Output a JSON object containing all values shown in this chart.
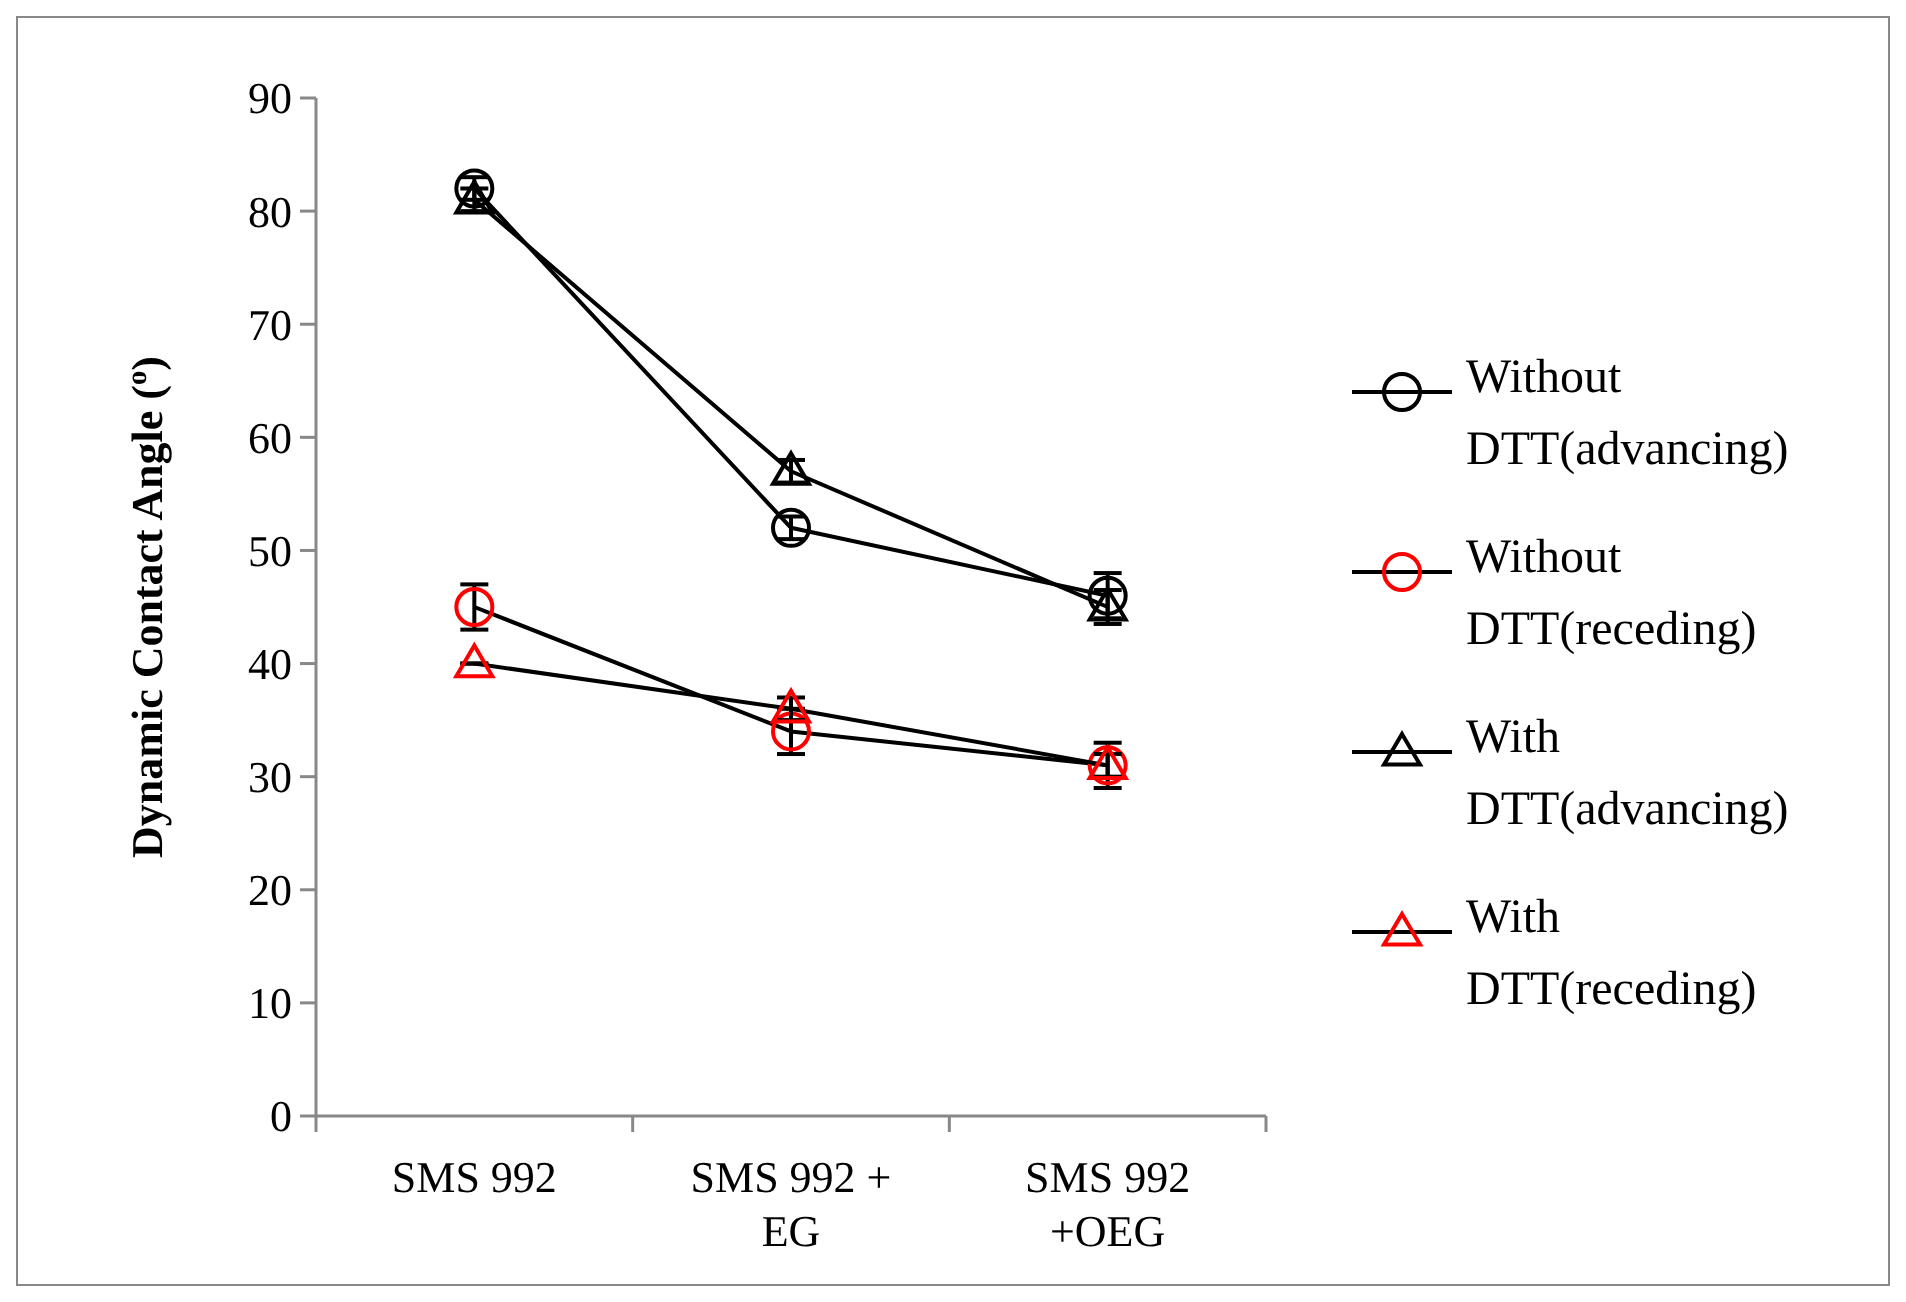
{
  "chart_data": {
    "type": "line",
    "ylabel": "Dynamic Contact Angle ($^{o}$)",
    "categories": [
      "SMS 992",
      "SMS 992 + EG",
      "SMS 992 +OEG"
    ],
    "ylim": [
      0,
      90
    ],
    "yticks": [
      0,
      10,
      20,
      30,
      40,
      50,
      60,
      70,
      80,
      90
    ],
    "grid": false,
    "legend": "right",
    "series": [
      {
        "name": "Without DTT(advancing)",
        "color": "#000000",
        "marker": "circle",
        "values": [
          82,
          52,
          46
        ],
        "errors": [
          1,
          1,
          2
        ]
      },
      {
        "name": "Without DTT(receding)",
        "color": "#ff0000",
        "marker": "circle",
        "values": [
          45,
          34,
          31
        ],
        "errors": [
          2,
          2,
          2
        ]
      },
      {
        "name": "With DTT(advancing)",
        "color": "#000000",
        "marker": "triangle",
        "values": [
          81,
          57,
          45
        ],
        "errors": [
          1,
          1,
          1.5
        ]
      },
      {
        "name": "With DTT(receding)",
        "color": "#ff0000",
        "marker": "triangle",
        "values": [
          40,
          36,
          31
        ],
        "errors": [
          0,
          1,
          1
        ]
      }
    ]
  }
}
